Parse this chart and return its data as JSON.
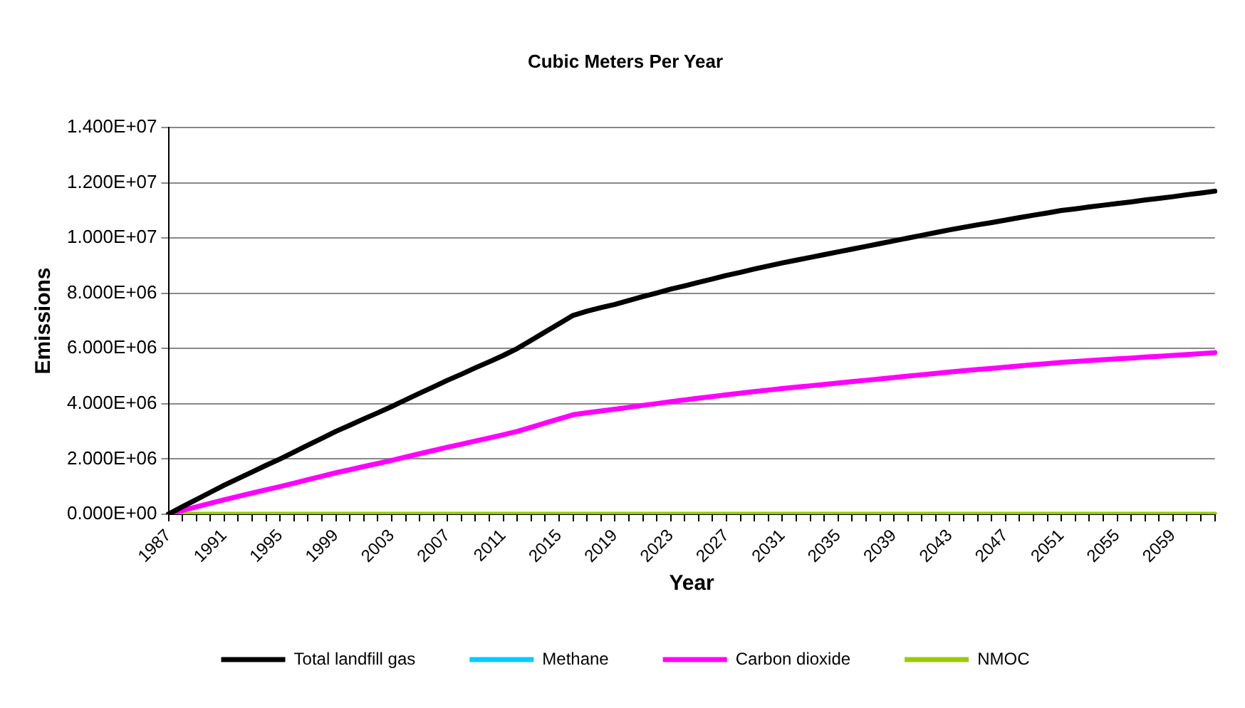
{
  "chart_data": {
    "type": "line",
    "title": "Cubic Meters Per Year",
    "xlabel": "Year",
    "ylabel": "Emissions",
    "categories": [
      "1987",
      null,
      null,
      null,
      "1991",
      null,
      null,
      null,
      "1995",
      null,
      null,
      null,
      "1999",
      null,
      null,
      null,
      "2003",
      null,
      null,
      null,
      "2007",
      null,
      null,
      null,
      "2011",
      null,
      null,
      null,
      "2015",
      null,
      null,
      null,
      "2019",
      null,
      null,
      null,
      "2023",
      null,
      null,
      null,
      "2027",
      null,
      null,
      null,
      "2031",
      null,
      null,
      null,
      "2035",
      null,
      null,
      null,
      "2039",
      null,
      null,
      null,
      "2043",
      null,
      null,
      null,
      "2047",
      null,
      null,
      null,
      "2051",
      null,
      null,
      null,
      "2055",
      null,
      null,
      null,
      "2059",
      null,
      null,
      null
    ],
    "series": [
      {
        "name": "Total landfill gas",
        "color": "#000000",
        "values": [
          0,
          270000,
          530000,
          790000,
          1050000,
          1290000,
          1530000,
          1770000,
          2000000,
          2250000,
          2500000,
          2750000,
          3000000,
          3220000,
          3450000,
          3670000,
          3900000,
          4140000,
          4380000,
          4610000,
          4850000,
          5070000,
          5300000,
          5520000,
          5750000,
          6000000,
          6300000,
          6600000,
          6900000,
          7200000,
          7350000,
          7480000,
          7600000,
          7740000,
          7880000,
          8010000,
          8150000,
          8270000,
          8400000,
          8520000,
          8650000,
          8760000,
          8880000,
          8990000,
          9100000,
          9200000,
          9300000,
          9400000,
          9500000,
          9600000,
          9700000,
          9800000,
          9900000,
          10000000,
          10100000,
          10200000,
          10300000,
          10390000,
          10480000,
          10560000,
          10650000,
          10740000,
          10830000,
          10910000,
          11000000,
          11060000,
          11130000,
          11190000,
          11250000,
          11310000,
          11380000,
          11440000,
          11500000,
          11570000,
          11630000,
          11700000
        ]
      },
      {
        "name": "Methane",
        "color": "#00ccff",
        "values": [
          null,
          null,
          null,
          null,
          null,
          null,
          null,
          null,
          null,
          null,
          null,
          null,
          null,
          null,
          null,
          null,
          null,
          null,
          null,
          null,
          null,
          null,
          null,
          null,
          null,
          null,
          null,
          null,
          null,
          null,
          null,
          null,
          null,
          null,
          null,
          null,
          null,
          null,
          null,
          null,
          null,
          null,
          null,
          null,
          null,
          null,
          null,
          null,
          null,
          null,
          null,
          null,
          null,
          null,
          null,
          null,
          null,
          null,
          null,
          null,
          null,
          null,
          null,
          null,
          null,
          null,
          null,
          null,
          null,
          null,
          null,
          null,
          null,
          null,
          null,
          null
        ]
      },
      {
        "name": "Carbon dioxide",
        "color": "#ff00ff",
        "values": [
          0,
          135000,
          265000,
          395000,
          525000,
          645000,
          765000,
          885000,
          1000000,
          1125000,
          1250000,
          1375000,
          1500000,
          1610000,
          1725000,
          1835000,
          1950000,
          2070000,
          2190000,
          2305000,
          2425000,
          2535000,
          2650000,
          2760000,
          2875000,
          3000000,
          3150000,
          3300000,
          3450000,
          3600000,
          3675000,
          3740000,
          3800000,
          3870000,
          3940000,
          4005000,
          4075000,
          4135000,
          4200000,
          4260000,
          4325000,
          4380000,
          4440000,
          4495000,
          4550000,
          4600000,
          4650000,
          4700000,
          4750000,
          4800000,
          4850000,
          4900000,
          4950000,
          5000000,
          5050000,
          5100000,
          5150000,
          5195000,
          5240000,
          5280000,
          5325000,
          5370000,
          5415000,
          5455000,
          5500000,
          5530000,
          5565000,
          5595000,
          5625000,
          5655000,
          5690000,
          5720000,
          5750000,
          5785000,
          5815000,
          5850000
        ]
      },
      {
        "name": "NMOC",
        "color": "#99cc00",
        "values": [
          0,
          0,
          0,
          0,
          0,
          0,
          0,
          0,
          0,
          0,
          0,
          0,
          0,
          0,
          0,
          0,
          0,
          0,
          0,
          0,
          0,
          0,
          0,
          0,
          0,
          0,
          0,
          0,
          0,
          0,
          0,
          0,
          0,
          0,
          0,
          0,
          0,
          0,
          0,
          0,
          0,
          0,
          0,
          0,
          0,
          0,
          0,
          0,
          0,
          0,
          0,
          0,
          0,
          0,
          0,
          0,
          0,
          0,
          0,
          0,
          0,
          0,
          0,
          0,
          0,
          0,
          0,
          0,
          0,
          0,
          0,
          0,
          0,
          0,
          0,
          0
        ]
      }
    ],
    "ylim": [
      0,
      14000000
    ],
    "yticks": [
      {
        "value": 0,
        "label": "0.000E+00"
      },
      {
        "value": 2000000,
        "label": "2.000E+06"
      },
      {
        "value": 4000000,
        "label": "4.000E+06"
      },
      {
        "value": 6000000,
        "label": "6.000E+06"
      },
      {
        "value": 8000000,
        "label": "8.000E+06"
      },
      {
        "value": 10000000,
        "label": "1.000E+07"
      },
      {
        "value": 12000000,
        "label": "1.200E+07"
      },
      {
        "value": 14000000,
        "label": "1.400E+07"
      }
    ],
    "grid": "y",
    "legend": "bottom",
    "marker": "none",
    "line_style": "solid"
  }
}
